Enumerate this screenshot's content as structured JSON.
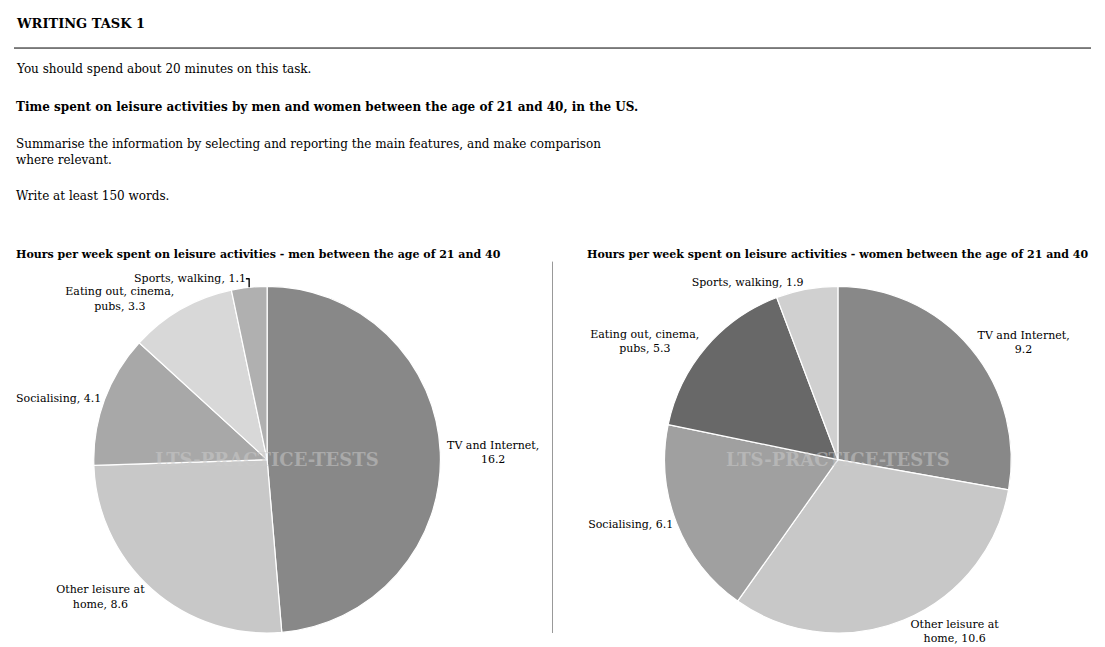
{
  "title": "WRITING TASK 1",
  "subtitle": [
    "You should spend about 20 minutes on this task.",
    "Time spent on leisure activities by men and women between the age of 21 and 40, in the US.",
    "Summarise the information by selecting and reporting the main features, and make comparison\nwhere relevant.",
    "Write at least 150 words."
  ],
  "chart_data": [
    {
      "type": "pie",
      "title": "Hours per week spent on leisure activities - men between the age of 21 and 40",
      "categories": [
        "TV and Internet,\n16.2",
        "Other leisure at\nhome, 8.6",
        "Socialising, 4.1",
        "Eating out, cinema,\npubs, 3.3",
        "Sports, walking, 1.1"
      ],
      "values": [
        16.2,
        8.6,
        4.1,
        3.3,
        1.1
      ],
      "colors": [
        "#888888",
        "#c8c8c8",
        "#a8a8a8",
        "#d8d8d8",
        "#b0b0b0"
      ],
      "annotations": [
        "LTS-PRACTICE-TESTS"
      ]
    },
    {
      "type": "pie",
      "title": "Hours per week spent on leisure activities - women between the age of 21 and 40",
      "categories": [
        "TV and Internet,\n9.2",
        "Other leisure at\nhome, 10.6",
        "Socialising, 6.1",
        "Eating out, cinema,\npubs, 5.3",
        "Sports, walking, 1.9"
      ],
      "values": [
        9.2,
        10.6,
        6.1,
        5.3,
        1.9
      ],
      "colors": [
        "#888888",
        "#c8c8c8",
        "#a0a0a0",
        "#686868",
        "#d0d0d0"
      ],
      "annotations": [
        "LTS-PRACTICE-TESTS"
      ]
    }
  ]
}
